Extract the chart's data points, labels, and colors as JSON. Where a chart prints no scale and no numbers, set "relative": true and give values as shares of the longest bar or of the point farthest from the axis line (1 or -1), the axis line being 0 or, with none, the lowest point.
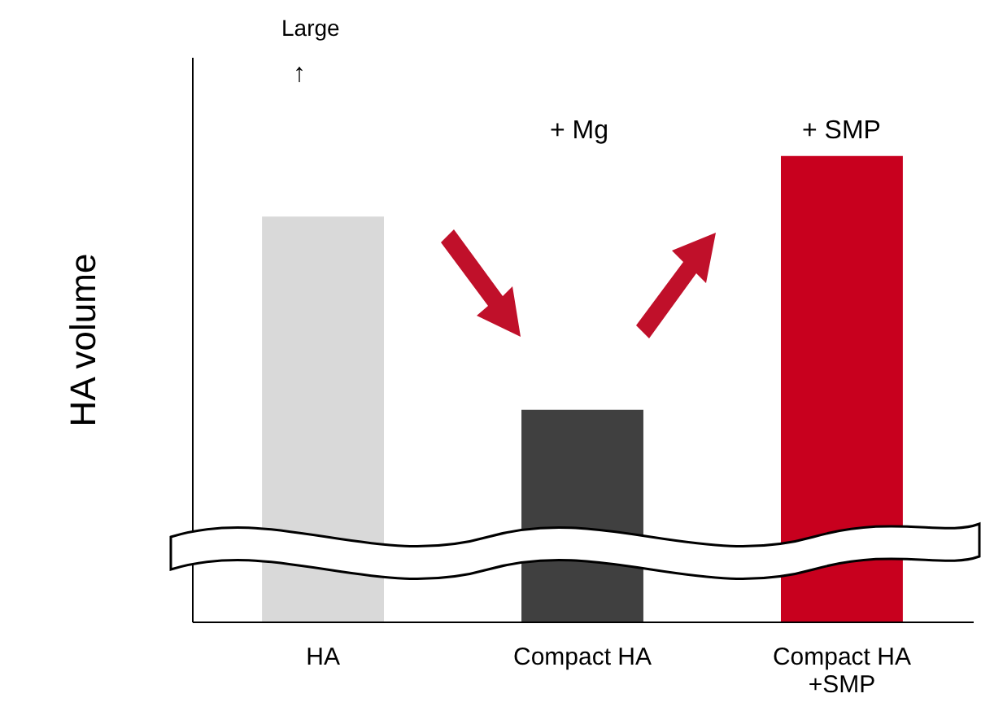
{
  "chart_data": {
    "type": "bar",
    "relative": true,
    "ylabel": "HA  volume",
    "categories": [
      "HA",
      "Compact HA",
      "Compact HA\n+SMP"
    ],
    "values": [
      0.87,
      0.455,
      1.0
    ],
    "colors": [
      "#d9d9d9",
      "#404040",
      "#c8001e"
    ],
    "annotations": [
      "Large",
      "↑",
      "+ Mg",
      "+ SMP"
    ],
    "grid": false
  }
}
